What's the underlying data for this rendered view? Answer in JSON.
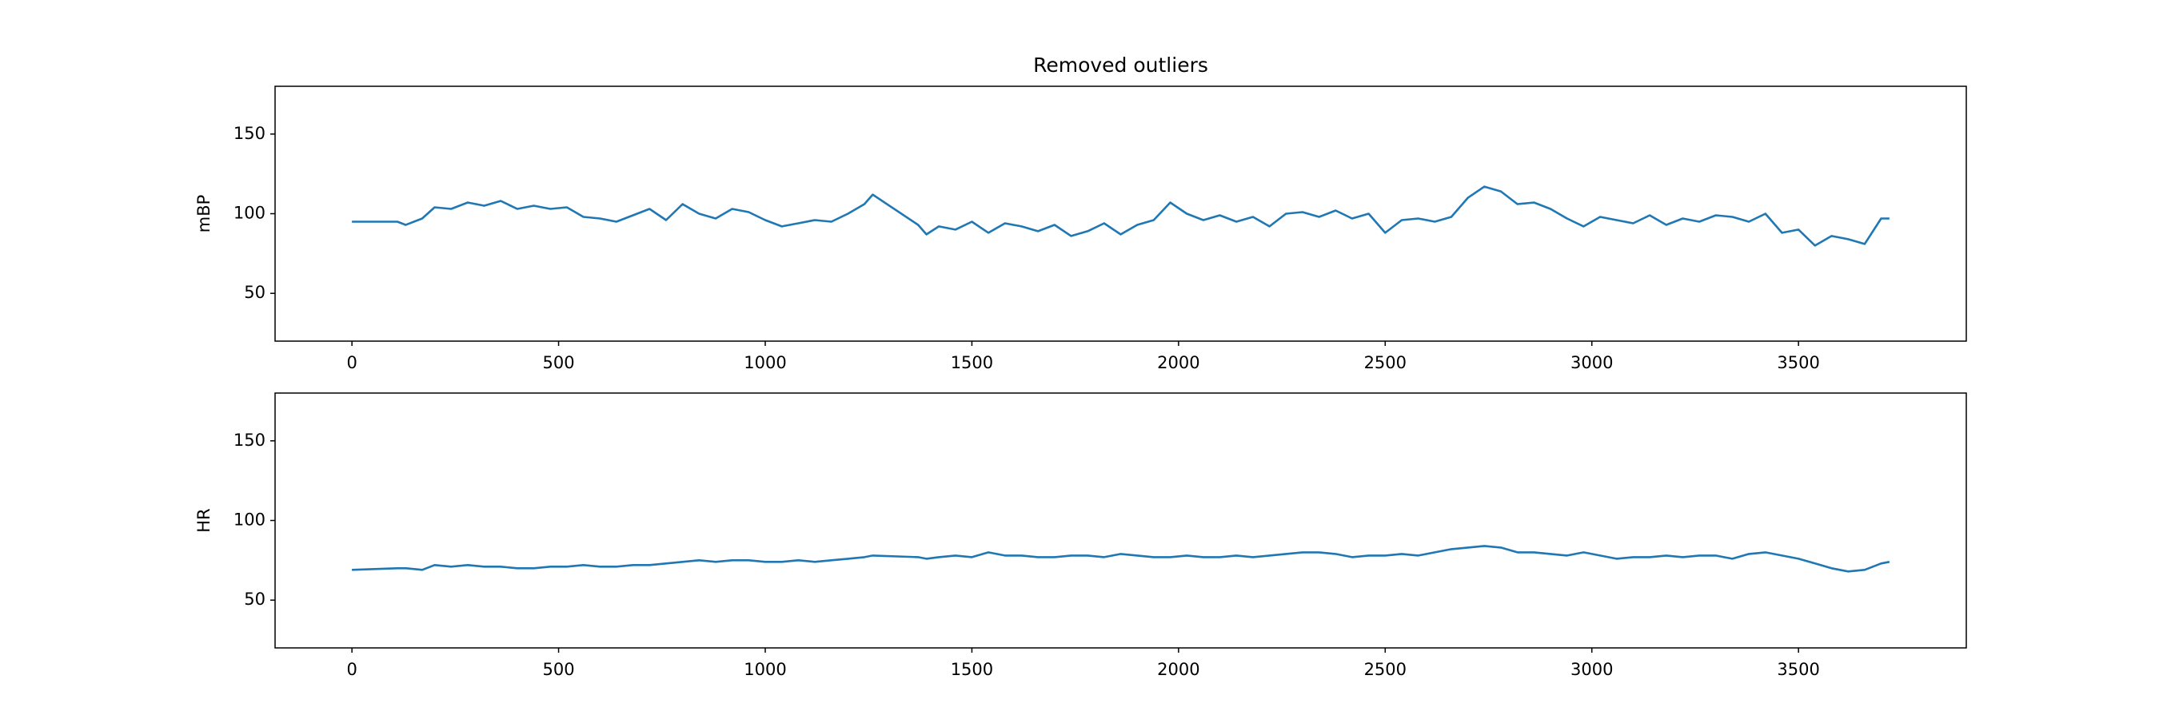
{
  "chart_data": [
    {
      "type": "line",
      "title": "Removed outliers",
      "y_label": "mBP",
      "color": "#1f77b4",
      "x": [
        0,
        110,
        130,
        170,
        200,
        240,
        280,
        320,
        360,
        400,
        440,
        480,
        520,
        560,
        600,
        640,
        680,
        720,
        760,
        800,
        840,
        880,
        920,
        960,
        1000,
        1040,
        1080,
        1120,
        1160,
        1200,
        1240,
        1260,
        1370,
        1390,
        1420,
        1460,
        1500,
        1540,
        1580,
        1620,
        1660,
        1700,
        1740,
        1780,
        1820,
        1860,
        1900,
        1940,
        1980,
        2020,
        2060,
        2100,
        2140,
        2180,
        2220,
        2260,
        2300,
        2340,
        2380,
        2420,
        2460,
        2500,
        2540,
        2580,
        2620,
        2660,
        2700,
        2740,
        2780,
        2820,
        2860,
        2900,
        2940,
        2980,
        3020,
        3060,
        3100,
        3140,
        3180,
        3220,
        3260,
        3300,
        3340,
        3380,
        3420,
        3460,
        3500,
        3540,
        3580,
        3620,
        3660,
        3700,
        3720
      ],
      "values": [
        95,
        95,
        93,
        97,
        104,
        103,
        107,
        105,
        108,
        103,
        105,
        103,
        104,
        98,
        97,
        95,
        99,
        103,
        96,
        106,
        100,
        97,
        103,
        101,
        96,
        92,
        94,
        96,
        95,
        100,
        106,
        112,
        93,
        87,
        92,
        90,
        95,
        88,
        94,
        92,
        89,
        93,
        86,
        89,
        94,
        87,
        93,
        96,
        107,
        100,
        96,
        99,
        95,
        98,
        92,
        100,
        101,
        98,
        102,
        97,
        100,
        88,
        96,
        97,
        95,
        98,
        110,
        117,
        114,
        106,
        107,
        103,
        97,
        92,
        98,
        96,
        94,
        99,
        93,
        97,
        95,
        99,
        98,
        95,
        100,
        88,
        90,
        80,
        86,
        84,
        81,
        97,
        97
      ],
      "xlim": [
        -186,
        3906
      ],
      "ylim": [
        20,
        180
      ],
      "xticks": [
        0,
        500,
        1000,
        1500,
        2000,
        2500,
        3000,
        3500
      ],
      "yticks": [
        50,
        100,
        150
      ]
    },
    {
      "type": "line",
      "y_label": "HR",
      "color": "#1f77b4",
      "x": [
        0,
        110,
        130,
        170,
        200,
        240,
        280,
        320,
        360,
        400,
        440,
        480,
        520,
        560,
        600,
        640,
        680,
        720,
        760,
        800,
        840,
        880,
        920,
        960,
        1000,
        1040,
        1080,
        1120,
        1160,
        1200,
        1240,
        1260,
        1370,
        1390,
        1420,
        1460,
        1500,
        1540,
        1580,
        1620,
        1660,
        1700,
        1740,
        1780,
        1820,
        1860,
        1900,
        1940,
        1980,
        2020,
        2060,
        2100,
        2140,
        2180,
        2220,
        2260,
        2300,
        2340,
        2380,
        2420,
        2460,
        2500,
        2540,
        2580,
        2620,
        2660,
        2700,
        2740,
        2780,
        2820,
        2860,
        2900,
        2940,
        2980,
        3020,
        3060,
        3100,
        3140,
        3180,
        3220,
        3260,
        3300,
        3340,
        3380,
        3420,
        3460,
        3500,
        3540,
        3580,
        3620,
        3660,
        3700,
        3720
      ],
      "values": [
        69,
        70,
        70,
        69,
        72,
        71,
        72,
        71,
        71,
        70,
        70,
        71,
        71,
        72,
        71,
        71,
        72,
        72,
        73,
        74,
        75,
        74,
        75,
        75,
        74,
        74,
        75,
        74,
        75,
        76,
        77,
        78,
        77,
        76,
        77,
        78,
        77,
        80,
        78,
        78,
        77,
        77,
        78,
        78,
        77,
        79,
        78,
        77,
        77,
        78,
        77,
        77,
        78,
        77,
        78,
        79,
        80,
        80,
        79,
        77,
        78,
        78,
        79,
        78,
        80,
        82,
        83,
        84,
        83,
        80,
        80,
        79,
        78,
        80,
        78,
        76,
        77,
        77,
        78,
        77,
        78,
        78,
        76,
        79,
        80,
        78,
        76,
        73,
        70,
        68,
        69,
        73,
        74
      ],
      "xlim": [
        -186,
        3906
      ],
      "ylim": [
        20,
        180
      ],
      "xticks": [
        0,
        500,
        1000,
        1500,
        2000,
        2500,
        3000,
        3500
      ],
      "yticks": [
        50,
        100,
        150
      ]
    }
  ]
}
